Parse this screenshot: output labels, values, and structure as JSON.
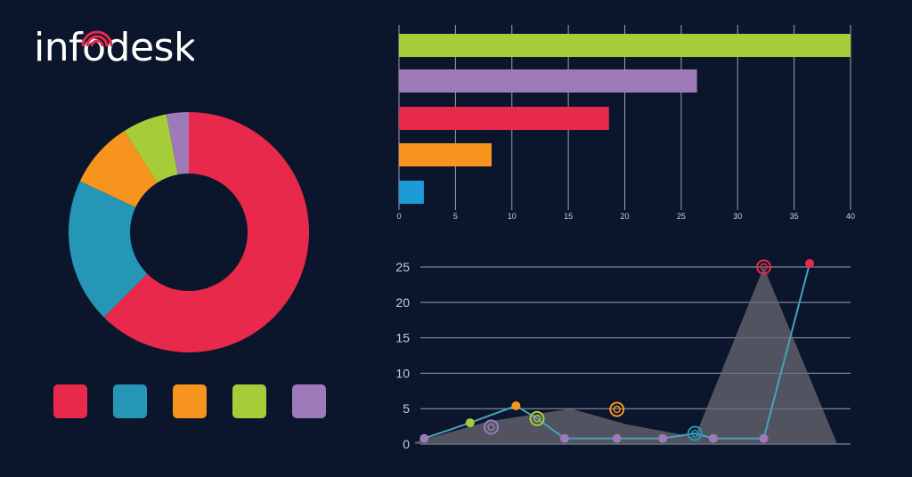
{
  "brand": {
    "logo_text": "infodesk",
    "logo_accent": "#e8294b"
  },
  "colors": {
    "background": "#0b162c",
    "red": "#e8294b",
    "blue": "#2596b5",
    "orange": "#f7941d",
    "green": "#a6cc38",
    "purple": "#9f7ab8",
    "grid": "#9aa1ad",
    "area": "#6a6a72"
  },
  "legend": {
    "colors": [
      "#e8294b",
      "#2596b5",
      "#f7941d",
      "#a6cc38",
      "#9f7ab8"
    ]
  },
  "chart_data": [
    {
      "type": "pie",
      "style": "donut",
      "slices": [
        {
          "value": 62.5,
          "color": "#e8294b"
        },
        {
          "value": 19.5,
          "color": "#2596b5"
        },
        {
          "value": 9.0,
          "color": "#f7941d"
        },
        {
          "value": 6.0,
          "color": "#a6cc38"
        },
        {
          "value": 3.0,
          "color": "#9f7ab8"
        }
      ]
    },
    {
      "type": "bar",
      "orientation": "horizontal",
      "values": [
        40,
        26.4,
        18.6,
        8.2,
        2.2
      ],
      "colors": [
        "#a6cc38",
        "#9f7ab8",
        "#e8294b",
        "#f7941d",
        "#1e9ad6"
      ],
      "xlim": [
        0,
        40
      ],
      "xticks": [
        "0",
        "5",
        "10",
        "15",
        "20",
        "25",
        "30",
        "35",
        "40"
      ],
      "grid": true
    },
    {
      "type": "line",
      "ylim": [
        0,
        25
      ],
      "yticks": [
        "0",
        "5",
        "10",
        "15",
        "20",
        "25"
      ],
      "grid": true,
      "area": {
        "points": [
          [
            0,
            0.3
          ],
          [
            8,
            3.2
          ],
          [
            17,
            5.0
          ],
          [
            23,
            2.8
          ],
          [
            30.5,
            1.0
          ],
          [
            38,
            25
          ],
          [
            46,
            0
          ]
        ],
        "color": "#6a6a72"
      },
      "line": {
        "points": [
          [
            1,
            0.8
          ],
          [
            6,
            3.0
          ],
          [
            11,
            5.4
          ],
          [
            13.3,
            3.6
          ],
          [
            16.3,
            0.8
          ],
          [
            22,
            0.8
          ],
          [
            27,
            0.8
          ],
          [
            30.5,
            1.5
          ],
          [
            32.5,
            0.8
          ],
          [
            38,
            0.8
          ],
          [
            43,
            25.5
          ]
        ],
        "color": "#4aa0c0"
      },
      "markers": [
        {
          "x": 1,
          "y": 0.8,
          "color": "#9f7ab8",
          "style": "dot"
        },
        {
          "x": 6,
          "y": 3.0,
          "color": "#a6cc38",
          "style": "dot"
        },
        {
          "x": 8.3,
          "y": 2.4,
          "color": "#9f7ab8",
          "style": "ring"
        },
        {
          "x": 11,
          "y": 5.4,
          "color": "#f7941d",
          "style": "dot"
        },
        {
          "x": 13.3,
          "y": 3.6,
          "color": "#a6cc38",
          "style": "ring"
        },
        {
          "x": 16.3,
          "y": 0.8,
          "color": "#9f7ab8",
          "style": "dot"
        },
        {
          "x": 22,
          "y": 0.8,
          "color": "#9f7ab8",
          "style": "dot"
        },
        {
          "x": 22,
          "y": 4.9,
          "color": "#f7941d",
          "style": "ring"
        },
        {
          "x": 27,
          "y": 0.8,
          "color": "#9f7ab8",
          "style": "dot"
        },
        {
          "x": 30.5,
          "y": 1.5,
          "color": "#2596b5",
          "style": "ring"
        },
        {
          "x": 32.5,
          "y": 0.8,
          "color": "#9f7ab8",
          "style": "dot"
        },
        {
          "x": 38,
          "y": 0.8,
          "color": "#9f7ab8",
          "style": "dot"
        },
        {
          "x": 38,
          "y": 25.0,
          "color": "#e8294b",
          "style": "ring"
        },
        {
          "x": 43,
          "y": 25.5,
          "color": "#e8294b",
          "style": "dot"
        }
      ]
    }
  ]
}
